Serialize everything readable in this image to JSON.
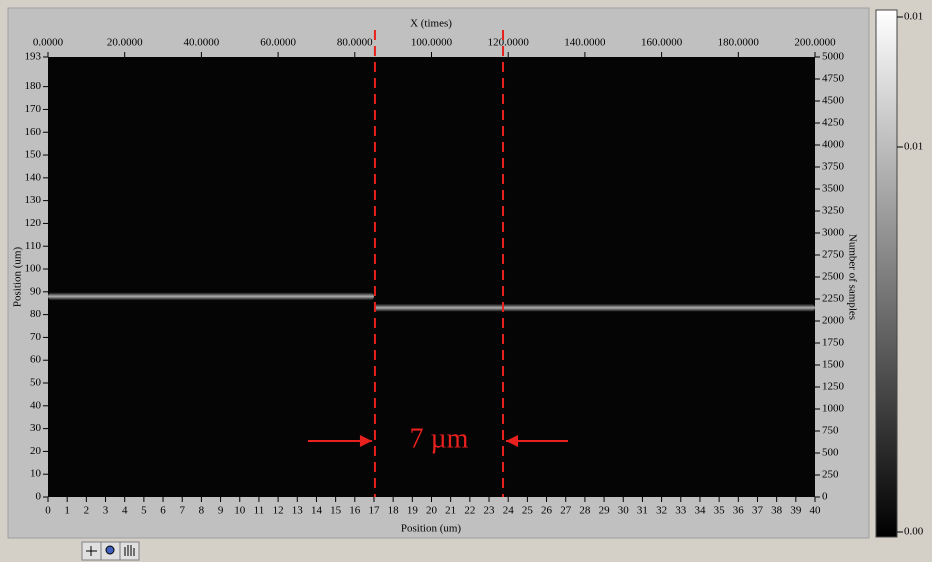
{
  "chart_data": {
    "type": "intensity",
    "top_axis_label": "X (times)",
    "bottom_axis_label": "Position (um)",
    "left_axis_label": "Position (um)",
    "right_axis_label": "Number of samples",
    "x2lim": [
      0,
      200
    ],
    "x2ticks": [
      {
        "value": 0,
        "label": "0.0000"
      },
      {
        "value": 20,
        "label": "20.0000"
      },
      {
        "value": 40,
        "label": "40.0000"
      },
      {
        "value": 60,
        "label": "60.0000"
      },
      {
        "value": 80,
        "label": "80.0000"
      },
      {
        "value": 100,
        "label": "100.0000"
      },
      {
        "value": 120,
        "label": "120.0000"
      },
      {
        "value": 140,
        "label": "140.0000"
      },
      {
        "value": 160,
        "label": "160.0000"
      },
      {
        "value": 180,
        "label": "180.0000"
      },
      {
        "value": 200,
        "label": "200.0000"
      }
    ],
    "xlim": [
      0,
      40
    ],
    "xticks": [
      0,
      1,
      2,
      3,
      4,
      5,
      6,
      7,
      8,
      9,
      10,
      11,
      12,
      13,
      14,
      15,
      16,
      17,
      18,
      19,
      20,
      21,
      22,
      23,
      24,
      25,
      26,
      27,
      28,
      29,
      30,
      31,
      32,
      33,
      34,
      35,
      36,
      37,
      38,
      39,
      40
    ],
    "ylim": [
      0,
      193
    ],
    "yticks": [
      0,
      10,
      20,
      30,
      40,
      50,
      60,
      70,
      80,
      90,
      100,
      110,
      120,
      130,
      140,
      150,
      160,
      170,
      180,
      193
    ],
    "y2lim": [
      0,
      5000
    ],
    "y2ticks": [
      0,
      250,
      500,
      750,
      1000,
      1250,
      1500,
      1750,
      2000,
      2250,
      2500,
      2750,
      3000,
      3250,
      3500,
      3750,
      4000,
      4250,
      4500,
      4750,
      5000
    ],
    "streaks": [
      {
        "x": [
          0,
          17
        ],
        "y": 88
      },
      {
        "x": [
          17,
          40
        ],
        "y": 83
      }
    ],
    "markers": [
      17.05,
      23.73
    ],
    "marker_color": "#e8201e",
    "annotation": "7 µm",
    "colorbar_labels": [
      "0.01",
      "0.01",
      "0.00"
    ]
  }
}
